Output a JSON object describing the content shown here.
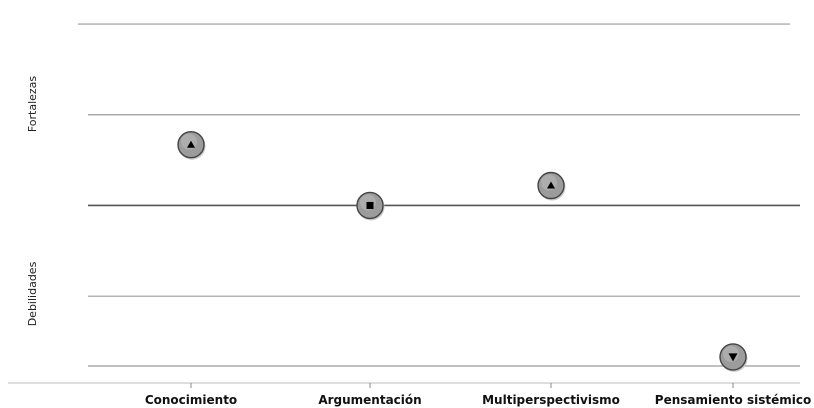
{
  "chart_data": {
    "type": "scatter",
    "categories": [
      "Conocimiento",
      "Argumentación",
      "Multiperspectivismo",
      "Pensamiento sistémico"
    ],
    "values": [
      0.67,
      0.0,
      0.22,
      -1.67
    ],
    "markers": [
      "triangle-up",
      "square",
      "triangle-up",
      "triangle-down"
    ],
    "ylim": [
      -1.77,
      2.1
    ],
    "baseline": 0,
    "gridlines": [
      2.0,
      1.0,
      0.0,
      -1.0,
      -1.77
    ],
    "y_region_labels": {
      "upper": "Fortalezas",
      "lower": "Debilidades"
    },
    "grid": true,
    "legend": "none",
    "colors": {
      "grid": "#9a9a9a",
      "baseline": "#555555",
      "marker_fill": "#9c9c9c",
      "marker_stroke": "#444444",
      "marker_glyph": "#000000"
    }
  }
}
